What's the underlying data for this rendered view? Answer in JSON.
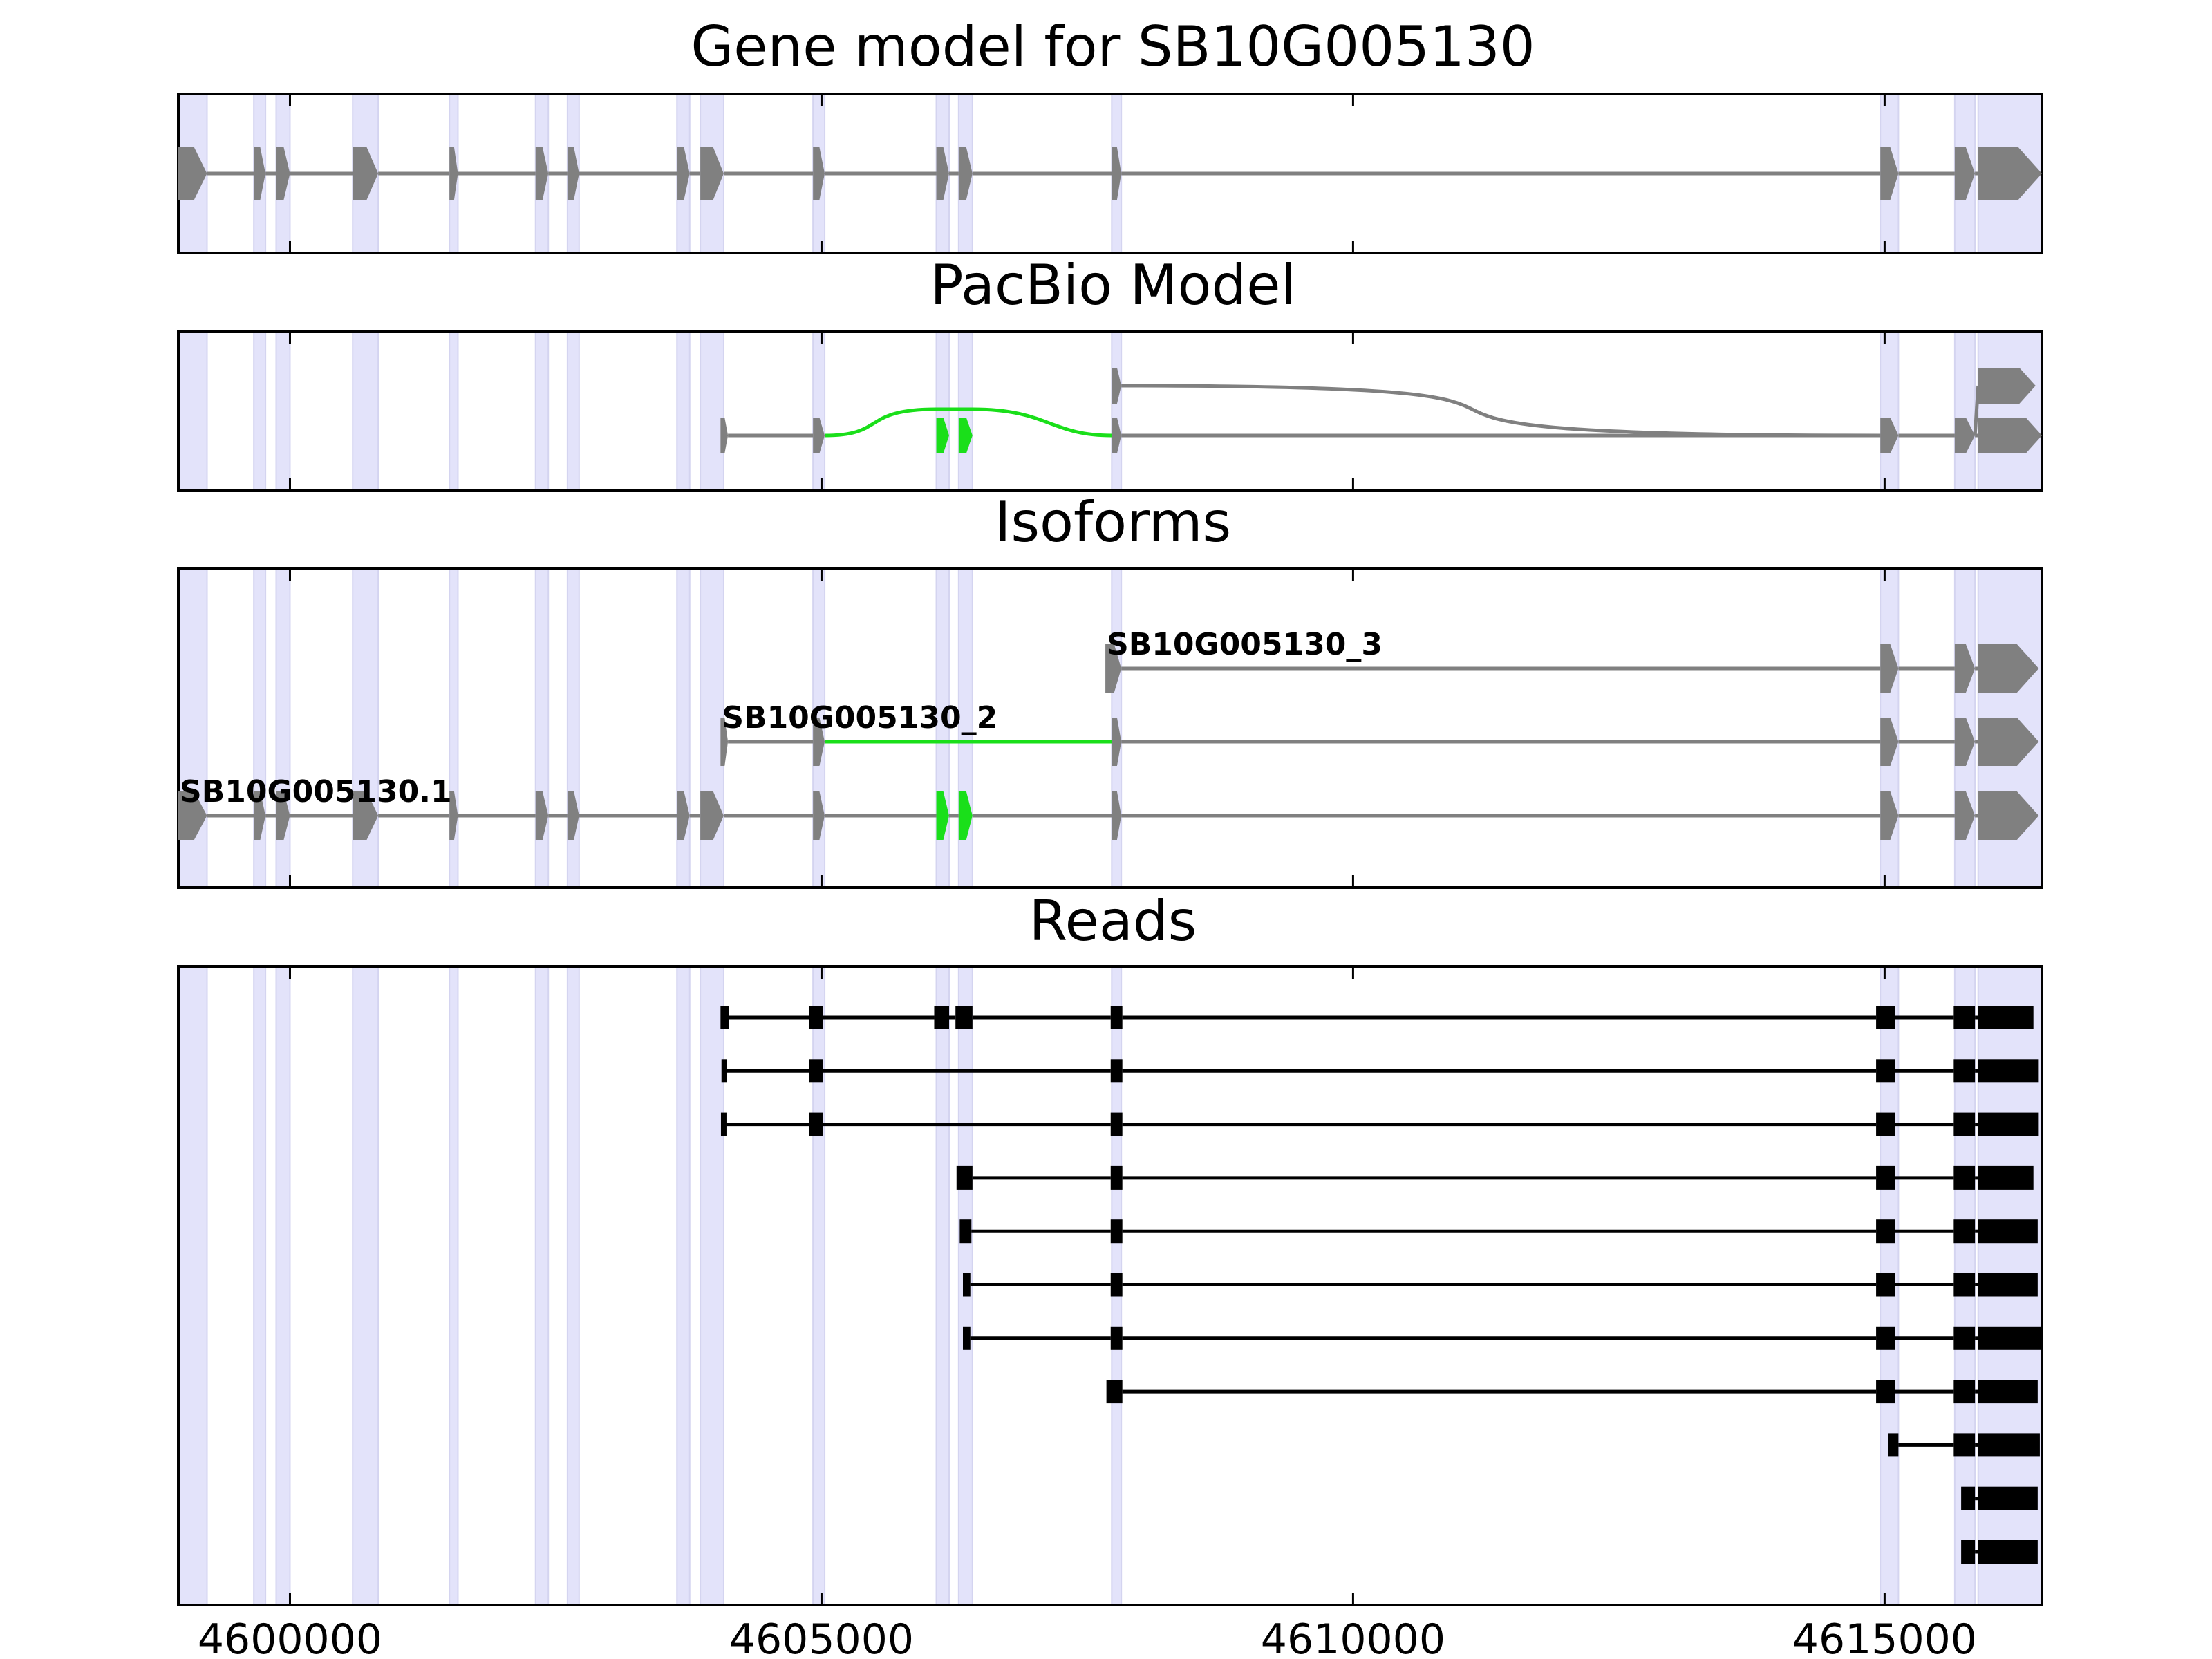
{
  "colors": {
    "background": "#ffffff",
    "exon_band": "#e3e3fa",
    "exon_band_edge": "#d4d4f0",
    "gene_model": "#808080",
    "highlight": "#1adf1a",
    "read": "#000000",
    "frame": "#000000"
  },
  "chart_data": {
    "type": "gene-structure",
    "xlim": [
      4598950,
      4616480
    ],
    "x_ticks": [
      4600000,
      4605000,
      4610000,
      4615000
    ],
    "x_tick_labels": [
      "4600000",
      "4605000",
      "4610000",
      "4615000"
    ],
    "exon_bands": [
      [
        4598950,
        4599220
      ],
      [
        4599660,
        4599770
      ],
      [
        4599870,
        4600000
      ],
      [
        4600590,
        4600830
      ],
      [
        4601500,
        4601580
      ],
      [
        4602310,
        4602430
      ],
      [
        4602610,
        4602720
      ],
      [
        4603640,
        4603760
      ],
      [
        4603860,
        4604080
      ],
      [
        4604920,
        4605030
      ],
      [
        4606080,
        4606200
      ],
      [
        4606290,
        4606420
      ],
      [
        4607730,
        4607820
      ],
      [
        4614960,
        4615130
      ],
      [
        4615660,
        4615850
      ],
      [
        4615880,
        4616480
      ]
    ],
    "panels": [
      {
        "id": "gene_model",
        "title": "Gene model for SB10G005130",
        "rows": 1,
        "tracks": [
          {
            "row": 0,
            "color": "gene_model",
            "exons": [
              [
                4598950,
                4599220
              ],
              [
                4599660,
                4599770
              ],
              [
                4599870,
                4600000
              ],
              [
                4600590,
                4600830
              ],
              [
                4601500,
                4601580
              ],
              [
                4602310,
                4602430
              ],
              [
                4602610,
                4602720
              ],
              [
                4603640,
                4603760
              ],
              [
                4603860,
                4604080
              ],
              [
                4604920,
                4605030
              ],
              [
                4606080,
                4606200
              ],
              [
                4606290,
                4606420
              ],
              [
                4607730,
                4607820
              ],
              [
                4614960,
                4615130
              ],
              [
                4615660,
                4615850
              ],
              [
                4615880,
                4616480
              ]
            ]
          }
        ]
      },
      {
        "id": "pacbio_model",
        "title": "PacBio Model",
        "rows": 2,
        "tracks": [
          {
            "row": 0,
            "color": "gene_model",
            "exons": [
              [
                4604050,
                4604120
              ],
              [
                4604920,
                4605030
              ],
              [
                4607730,
                4607820
              ],
              [
                4614960,
                4615130
              ],
              [
                4615660,
                4615850
              ],
              [
                4615880,
                4616480
              ]
            ]
          },
          {
            "row": 1,
            "color": "gene_model",
            "exons": [
              [
                4607730,
                4607820
              ],
              [
                4615880,
                4616420
              ]
            ]
          },
          {
            "row": 0,
            "color": "highlight",
            "exons": [
              [
                4606080,
                4606200
              ],
              [
                4606290,
                4606420
              ]
            ]
          }
        ],
        "arcs": [
          {
            "from": 4605030,
            "to": 4607730,
            "row": 0,
            "via": [
              [
                4606080,
                4606420
              ]
            ],
            "color": "highlight"
          },
          {
            "from": 4607820,
            "to": 4614960,
            "row_from": 1,
            "row_to": 0,
            "color": "gene_model"
          },
          {
            "from": 4615850,
            "to": 4615880,
            "row_from": 0,
            "row_to": 1,
            "color": "gene_model"
          }
        ]
      },
      {
        "id": "isoforms",
        "title": "Isoforms",
        "rows": 3,
        "tracks": [
          {
            "row": 0,
            "name": "SB10G005130.1",
            "color": "gene_model",
            "exons": [
              [
                4598950,
                4599220
              ],
              [
                4599660,
                4599770
              ],
              [
                4599870,
                4600000
              ],
              [
                4600590,
                4600830
              ],
              [
                4601500,
                4601580
              ],
              [
                4602310,
                4602430
              ],
              [
                4602610,
                4602720
              ],
              [
                4603640,
                4603760
              ],
              [
                4603860,
                4604080
              ],
              [
                4604920,
                4605030
              ],
              [
                4606080,
                4606200
              ],
              [
                4606290,
                4606420
              ],
              [
                4607730,
                4607820
              ],
              [
                4614960,
                4615130
              ],
              [
                4615660,
                4615850
              ],
              [
                4615880,
                4616450
              ]
            ],
            "highlight_exons": [
              [
                4606080,
                4606200
              ],
              [
                4606290,
                4606420
              ]
            ]
          },
          {
            "row": 1,
            "name": "SB10G005130_2",
            "color": "gene_model",
            "exons": [
              [
                4604050,
                4604120
              ],
              [
                4604920,
                4605030
              ],
              [
                4607730,
                4607820
              ],
              [
                4614960,
                4615130
              ],
              [
                4615660,
                4615850
              ],
              [
                4615880,
                4616450
              ]
            ],
            "highlight_intron": [
              4605030,
              4607730
            ]
          },
          {
            "row": 2,
            "name": "SB10G005130_3",
            "color": "gene_model",
            "exons": [
              [
                4607670,
                4607820
              ],
              [
                4614960,
                4615130
              ],
              [
                4615660,
                4615850
              ],
              [
                4615880,
                4616450
              ]
            ]
          }
        ]
      },
      {
        "id": "reads",
        "title": "Reads",
        "rows": 11,
        "tracks": [
          {
            "row": 0,
            "color": "read",
            "exons": [
              [
                4604050,
                4604130
              ],
              [
                4604880,
                4605010
              ],
              [
                4606060,
                4606200
              ],
              [
                4606260,
                4606420
              ],
              [
                4607720,
                4607830
              ],
              [
                4614920,
                4615100
              ],
              [
                4615650,
                4615850
              ],
              [
                4615880,
                4616400
              ]
            ]
          },
          {
            "row": 1,
            "color": "read",
            "exons": [
              [
                4604060,
                4604110
              ],
              [
                4604880,
                4605010
              ],
              [
                4607720,
                4607830
              ],
              [
                4614920,
                4615100
              ],
              [
                4615650,
                4615850
              ],
              [
                4615880,
                4616450
              ]
            ]
          },
          {
            "row": 2,
            "color": "read",
            "exons": [
              [
                4604060,
                4604100
              ],
              [
                4604880,
                4605010
              ],
              [
                4607720,
                4607830
              ],
              [
                4614920,
                4615100
              ],
              [
                4615650,
                4615850
              ],
              [
                4615880,
                4616450
              ]
            ]
          },
          {
            "row": 3,
            "color": "read",
            "exons": [
              [
                4606270,
                4606420
              ],
              [
                4607720,
                4607830
              ],
              [
                4614920,
                4615100
              ],
              [
                4615650,
                4615850
              ],
              [
                4615880,
                4616400
              ]
            ]
          },
          {
            "row": 4,
            "color": "read",
            "exons": [
              [
                4606300,
                4606410
              ],
              [
                4607720,
                4607830
              ],
              [
                4614920,
                4615100
              ],
              [
                4615650,
                4615850
              ],
              [
                4615880,
                4616440
              ]
            ]
          },
          {
            "row": 5,
            "color": "read",
            "exons": [
              [
                4606330,
                4606400
              ],
              [
                4607720,
                4607830
              ],
              [
                4614920,
                4615100
              ],
              [
                4615650,
                4615850
              ],
              [
                4615880,
                4616440
              ]
            ]
          },
          {
            "row": 6,
            "color": "read",
            "exons": [
              [
                4606330,
                4606400
              ],
              [
                4607720,
                4607830
              ],
              [
                4614920,
                4615100
              ],
              [
                4615650,
                4615850
              ],
              [
                4615880,
                4616480
              ]
            ]
          },
          {
            "row": 7,
            "color": "read",
            "exons": [
              [
                4607680,
                4607830
              ],
              [
                4614920,
                4615100
              ],
              [
                4615650,
                4615850
              ],
              [
                4615880,
                4616440
              ]
            ]
          },
          {
            "row": 8,
            "color": "read",
            "exons": [
              [
                4615030,
                4615130
              ],
              [
                4615650,
                4615850
              ],
              [
                4615880,
                4616460
              ]
            ]
          },
          {
            "row": 9,
            "color": "read",
            "exons": [
              [
                4615720,
                4615850
              ],
              [
                4615880,
                4616440
              ]
            ]
          },
          {
            "row": 10,
            "color": "read",
            "exons": [
              [
                4615720,
                4615850
              ],
              [
                4615880,
                4616440
              ]
            ]
          }
        ]
      }
    ]
  }
}
